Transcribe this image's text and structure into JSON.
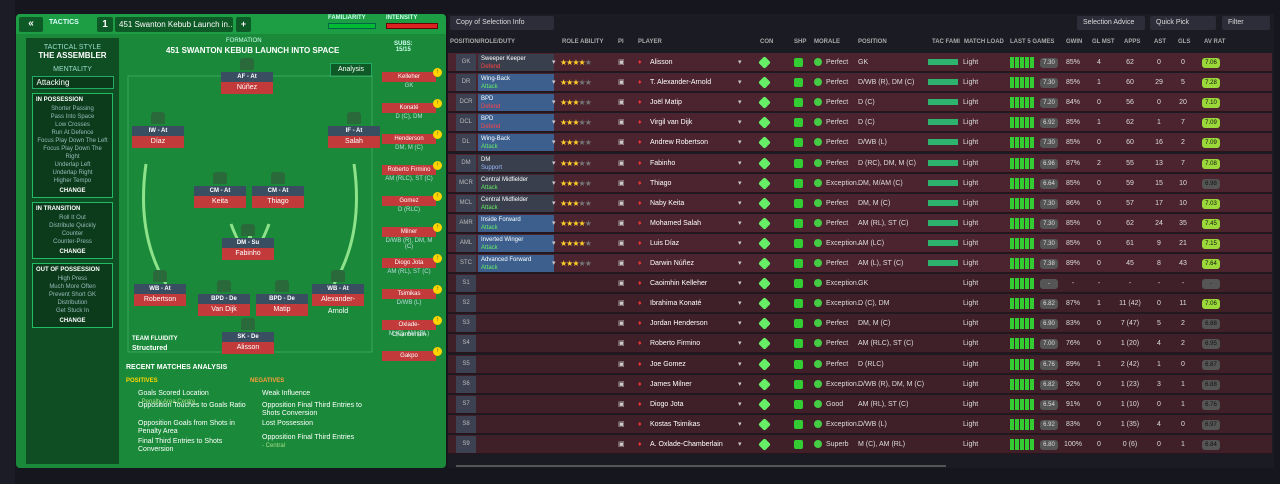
{
  "tactics": {
    "tab_label": "TACTICS",
    "slot_number": "1",
    "selected_tactic": "451 Swanton Kebub Launch in...",
    "add_label": "+",
    "familiarity_label": "FAMILIARITY",
    "intensity_label": "INTENSITY",
    "tactical_style_label": "TACTICAL STYLE",
    "tactical_style": "THE ASSEMBLER",
    "mentality_label": "MENTALITY",
    "mentality": "Attacking",
    "formation_label": "FORMATION",
    "formation_name": "451 SWANTON KEBUB LAUNCH INTO SPACE",
    "subs_label": "SUBS:",
    "subs_count": "15/15",
    "analysis_label": "Analysis",
    "team_fluidity_label": "TEAM FLUIDITY",
    "team_fluidity": "Structured",
    "in_possession": {
      "title": "IN POSSESSION",
      "items": [
        "Shorter Passing",
        "Pass Into Space",
        "Low Crosses",
        "Run At Defence",
        "Focus Play Down The Left",
        "Focus Play Down The Right",
        "Underlap Left",
        "Underlap Right",
        "Higher Tempo"
      ],
      "change": "CHANGE"
    },
    "in_transition": {
      "title": "IN TRANSITION",
      "items": [
        "Roll It Out",
        "Distribute Quickly",
        "Counter",
        "Counter-Press"
      ],
      "change": "CHANGE"
    },
    "out_of_possession": {
      "title": "OUT OF POSSESSION",
      "items": [
        "High Press",
        "Much More Often",
        "Prevent Short GK",
        "Distribution",
        "Get Stuck In"
      ],
      "change": "CHANGE"
    }
  },
  "pitch_players": [
    {
      "role": "AF - At",
      "name": "Núñez"
    },
    {
      "role": "IW - At",
      "name": "Díaz"
    },
    {
      "role": "IF - At",
      "name": "Salah"
    },
    {
      "role": "CM - At",
      "name": "Keita"
    },
    {
      "role": "CM - At",
      "name": "Thiago"
    },
    {
      "role": "DM - Su",
      "name": "Fabinho"
    },
    {
      "role": "WB - At",
      "name": "Robertson"
    },
    {
      "role": "BPD - De",
      "name": "Van Dijk"
    },
    {
      "role": "BPD - De",
      "name": "Matip"
    },
    {
      "role": "WB - At",
      "name": "Alexander-Arnold"
    },
    {
      "role": "SK - De",
      "name": "Alisson"
    }
  ],
  "subs_list": [
    {
      "name": "Kelleher",
      "pos": "GK"
    },
    {
      "name": "Konaté",
      "pos": "D (C), DM"
    },
    {
      "name": "Henderson",
      "pos": "DM, M (C)"
    },
    {
      "name": "Roberto Firmino",
      "pos": "AM (RLC), ST (C)"
    },
    {
      "name": "Gomez",
      "pos": "D (RLC)"
    },
    {
      "name": "Milner",
      "pos": "D/WB (R), DM, M (C)"
    },
    {
      "name": "Diogo Jota",
      "pos": "AM (RL), ST (C)"
    },
    {
      "name": "Tsimikas",
      "pos": "D/WB (L)"
    },
    {
      "name": "Oxlade-Chamberlain",
      "pos": "M (C), AM (RL)"
    },
    {
      "name": "Gakpo",
      "pos": ""
    }
  ],
  "analysis": {
    "title": "RECENT MATCHES ANALYSIS",
    "positives_label": "POSITIVES",
    "negatives_label": "NEGATIVES",
    "positives": [
      {
        "text": "Goals Scored Location",
        "sub": "- Penalty Area Centre"
      },
      {
        "text": "Opposition Touches to Goals Ratio",
        "sub": ""
      },
      {
        "text": "Opposition Goals from Shots in Penalty Area",
        "sub": ""
      },
      {
        "text": "Final Third Entries to Shots Conversion",
        "sub": ""
      }
    ],
    "negatives": [
      {
        "text": "Weak Influence",
        "sub": ""
      },
      {
        "text": "Opposition Final Third Entries to Shots Conversion",
        "sub": ""
      },
      {
        "text": "Lost Possession",
        "sub": ""
      },
      {
        "text": "Opposition Final Third Entries",
        "sub": "- Central"
      }
    ]
  },
  "right_toolbar": {
    "view": "Copy of Selection Info",
    "selection_advice": "Selection Advice",
    "quick_pick": "Quick Pick",
    "filter": "Filter"
  },
  "columns": [
    "POSITION/ROLE/DUTY",
    "ROLE ABILITY",
    "PI",
    "PLAYER",
    "CON",
    "SHP",
    "MORALE",
    "POSITION",
    "TAC FAMI",
    "MATCH LOAD",
    "LAST 5 GAMES",
    "GWIN",
    "GL MST",
    "APPS",
    "AST",
    "GLS",
    "AV RAT"
  ],
  "rows": [
    {
      "pos": "GK",
      "role": "Sweeper Keeper",
      "duty": "Defend",
      "stars": 4,
      "player": "Alisson",
      "morale": "Perfect",
      "position": "GK",
      "load": "Light",
      "form": "7.30",
      "gwin": "85%",
      "glmst": "4",
      "apps": "62",
      "ast": "0",
      "gls": "0",
      "avrat": "7.06"
    },
    {
      "pos": "DR",
      "role": "Wing-Back",
      "duty": "Attack",
      "stars": 3,
      "player": "T. Alexander-Arnold",
      "morale": "Perfect",
      "position": "D/WB (R), DM (C)",
      "load": "Light",
      "form": "7.30",
      "gwin": "85%",
      "glmst": "1",
      "apps": "60",
      "ast": "29",
      "gls": "5",
      "avrat": "7.28"
    },
    {
      "pos": "DCR",
      "role": "BPD",
      "duty": "Defend",
      "stars": 3,
      "player": "Joël Matip",
      "morale": "Perfect",
      "position": "D (C)",
      "load": "Light",
      "form": "7.20",
      "gwin": "84%",
      "glmst": "0",
      "apps": "56",
      "ast": "0",
      "gls": "20",
      "avrat": "7.10"
    },
    {
      "pos": "DCL",
      "role": "BPD",
      "duty": "Defend",
      "stars": 3,
      "player": "Virgil van Dijk",
      "morale": "Perfect",
      "position": "D (C)",
      "load": "Light",
      "form": "6.92",
      "gwin": "85%",
      "glmst": "1",
      "apps": "62",
      "ast": "1",
      "gls": "7",
      "avrat": "7.09"
    },
    {
      "pos": "DL",
      "role": "Wing-Back",
      "duty": "Attack",
      "stars": 3,
      "player": "Andrew Robertson",
      "morale": "Perfect",
      "position": "D/WB (L)",
      "load": "Light",
      "form": "7.30",
      "gwin": "85%",
      "glmst": "0",
      "apps": "60",
      "ast": "16",
      "gls": "2",
      "avrat": "7.09"
    },
    {
      "pos": "DM",
      "role": "DM",
      "duty": "Support",
      "stars": 3,
      "player": "Fabinho",
      "morale": "Perfect",
      "position": "D (RC), DM, M (C)",
      "load": "Light",
      "form": "6.96",
      "gwin": "87%",
      "glmst": "2",
      "apps": "55",
      "ast": "13",
      "gls": "7",
      "avrat": "7.08"
    },
    {
      "pos": "MCR",
      "role": "Central Midfielder",
      "duty": "Attack",
      "stars": 3,
      "player": "Thiago",
      "morale": "Exception...",
      "position": "DM, M/AM (C)",
      "load": "Light",
      "form": "6.64",
      "gwin": "85%",
      "glmst": "0",
      "apps": "59",
      "ast": "15",
      "gls": "10",
      "avrat": "6.98"
    },
    {
      "pos": "MCL",
      "role": "Central Midfielder",
      "duty": "Attack",
      "stars": 3,
      "player": "Naby Keita",
      "morale": "Perfect",
      "position": "DM, M (C)",
      "load": "Light",
      "form": "7.30",
      "gwin": "86%",
      "glmst": "0",
      "apps": "57",
      "ast": "17",
      "gls": "10",
      "avrat": "7.03"
    },
    {
      "pos": "AMR",
      "role": "Inside Forward",
      "duty": "Attack",
      "stars": 4,
      "player": "Mohamed Salah",
      "morale": "Perfect",
      "position": "AM (RL), ST (C)",
      "load": "Light",
      "form": "7.30",
      "gwin": "85%",
      "glmst": "0",
      "apps": "62",
      "ast": "24",
      "gls": "35",
      "avrat": "7.45"
    },
    {
      "pos": "AML",
      "role": "Inverted Winger",
      "duty": "Attack",
      "stars": 4,
      "player": "Luis Díaz",
      "morale": "Exception...",
      "position": "AM (LC)",
      "load": "Light",
      "form": "7.30",
      "gwin": "85%",
      "glmst": "0",
      "apps": "61",
      "ast": "9",
      "gls": "21",
      "avrat": "7.15"
    },
    {
      "pos": "STC",
      "role": "Advanced Forward",
      "duty": "Attack",
      "stars": 3,
      "player": "Darwin Núñez",
      "morale": "Perfect",
      "position": "AM (L), ST (C)",
      "load": "Light",
      "form": "7.38",
      "gwin": "89%",
      "glmst": "0",
      "apps": "45",
      "ast": "8",
      "gls": "43",
      "avrat": "7.64"
    },
    {
      "pos": "S1",
      "role": "",
      "duty": "",
      "stars": 0,
      "player": "Caoimhin Kelleher",
      "morale": "Exception...",
      "position": "GK",
      "load": "Light",
      "form": "-",
      "gwin": "-",
      "glmst": "-",
      "apps": "-",
      "ast": "-",
      "gls": "-",
      "avrat": "-"
    },
    {
      "pos": "S2",
      "role": "",
      "duty": "",
      "stars": 0,
      "player": "Ibrahima Konaté",
      "morale": "Exception...",
      "position": "D (C), DM",
      "load": "Light",
      "form": "6.82",
      "gwin": "87%",
      "glmst": "1",
      "apps": "11 (42)",
      "ast": "0",
      "gls": "11",
      "avrat": "7.06"
    },
    {
      "pos": "S3",
      "role": "",
      "duty": "",
      "stars": 0,
      "player": "Jordan Henderson",
      "morale": "Perfect",
      "position": "DM, M (C)",
      "load": "Light",
      "form": "6.90",
      "gwin": "83%",
      "glmst": "0",
      "apps": "7 (47)",
      "ast": "5",
      "gls": "2",
      "avrat": "6.88"
    },
    {
      "pos": "S4",
      "role": "",
      "duty": "",
      "stars": 0,
      "player": "Roberto Firmino",
      "morale": "Perfect",
      "position": "AM (RLC), ST (C)",
      "load": "Light",
      "form": "7.00",
      "gwin": "76%",
      "glmst": "0",
      "apps": "1 (20)",
      "ast": "4",
      "gls": "2",
      "avrat": "6.95"
    },
    {
      "pos": "S5",
      "role": "",
      "duty": "",
      "stars": 0,
      "player": "Joe Gomez",
      "morale": "Perfect",
      "position": "D (RLC)",
      "load": "Light",
      "form": "6.76",
      "gwin": "89%",
      "glmst": "1",
      "apps": "2 (42)",
      "ast": "1",
      "gls": "0",
      "avrat": "6.87"
    },
    {
      "pos": "S6",
      "role": "",
      "duty": "",
      "stars": 0,
      "player": "James Milner",
      "morale": "Exception...",
      "position": "D/WB (R), DM, M (C)",
      "load": "Light",
      "form": "6.82",
      "gwin": "92%",
      "glmst": "0",
      "apps": "1 (23)",
      "ast": "3",
      "gls": "1",
      "avrat": "6.88"
    },
    {
      "pos": "S7",
      "role": "",
      "duty": "",
      "stars": 0,
      "player": "Diogo Jota",
      "morale": "Good",
      "position": "AM (RL), ST (C)",
      "load": "Light",
      "form": "6.54",
      "gwin": "91%",
      "glmst": "0",
      "apps": "1 (10)",
      "ast": "0",
      "gls": "1",
      "avrat": "6.76"
    },
    {
      "pos": "S8",
      "role": "",
      "duty": "",
      "stars": 0,
      "player": "Kostas Tsimikas",
      "morale": "Exception...",
      "position": "D/WB (L)",
      "load": "Light",
      "form": "6.92",
      "gwin": "83%",
      "glmst": "0",
      "apps": "1 (35)",
      "ast": "4",
      "gls": "0",
      "avrat": "6.97"
    },
    {
      "pos": "S9",
      "role": "",
      "duty": "",
      "stars": 0,
      "player": "A. Oxlade-Chamberlain",
      "morale": "Superb",
      "position": "M (C), AM (RL)",
      "load": "Light",
      "form": "6.80",
      "gwin": "100%",
      "glmst": "0",
      "apps": "0 (6)",
      "ast": "0",
      "gls": "1",
      "avrat": "6.84"
    }
  ]
}
